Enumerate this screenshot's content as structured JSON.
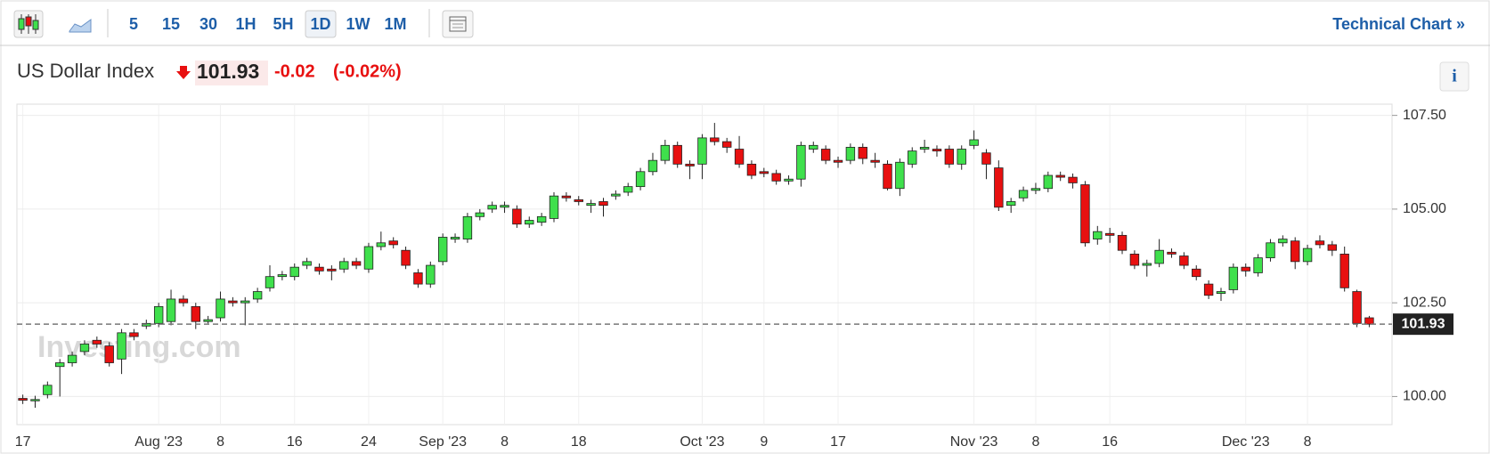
{
  "toolbar": {
    "intervals": [
      "5",
      "15",
      "30",
      "1H",
      "5H",
      "1D",
      "1W",
      "1M"
    ],
    "technical_chart": "Technical Chart »"
  },
  "header": {
    "title": "US Dollar Index",
    "price": "101.93",
    "change": "-0.02",
    "change_pct": "(-0.02%)",
    "info": "i"
  },
  "watermark": "Investing.com",
  "chart_data": {
    "type": "candlestick",
    "categories": [
      "17",
      null,
      null,
      null,
      null,
      null,
      null,
      null,
      null,
      null,
      null,
      "Aug '23",
      null,
      null,
      null,
      null,
      "8",
      null,
      null,
      null,
      null,
      null,
      "16",
      null,
      null,
      null,
      null,
      null,
      "24",
      null,
      null,
      null,
      null,
      null,
      "Sep '23",
      null,
      null,
      null,
      null,
      "8",
      null,
      null,
      null,
      null,
      null,
      "18",
      null,
      null,
      null,
      null,
      null,
      null,
      null,
      null,
      null,
      "Oct '23",
      null,
      null,
      null,
      null,
      "9",
      null,
      null,
      null,
      null,
      null,
      "17",
      null,
      null,
      null,
      null,
      null,
      null,
      null,
      null,
      null,
      null,
      "Nov '23",
      null,
      null,
      null,
      null,
      "8",
      null,
      null,
      null,
      null,
      null,
      "16",
      null,
      null,
      null,
      null,
      null,
      null,
      null,
      null,
      null,
      null,
      "Dec '23",
      null,
      null,
      null,
      null,
      "8",
      null,
      null,
      null,
      null,
      null
    ],
    "open": [
      99.95,
      99.9,
      100.05,
      100.8,
      100.9,
      101.2,
      101.5,
      101.35,
      101.0,
      101.7,
      101.88,
      101.95,
      102.0,
      102.6,
      102.4,
      102.0,
      102.1,
      102.55,
      102.5,
      102.6,
      102.9,
      103.2,
      103.2,
      103.5,
      103.45,
      103.4,
      103.4,
      103.6,
      103.4,
      104.0,
      104.15,
      103.9,
      103.3,
      103.0,
      103.6,
      104.2,
      104.2,
      104.8,
      105.0,
      105.05,
      105.0,
      104.6,
      104.65,
      104.75,
      105.35,
      105.25,
      105.1,
      105.2,
      105.35,
      105.45,
      105.6,
      106.0,
      106.3,
      106.7,
      106.2,
      106.2,
      106.9,
      106.8,
      106.6,
      106.2,
      106.0,
      105.95,
      105.75,
      105.8,
      106.6,
      106.6,
      106.3,
      106.3,
      106.65,
      106.3,
      106.2,
      105.55,
      106.2,
      106.6,
      106.6,
      106.6,
      106.2,
      106.7,
      106.5,
      106.1,
      105.1,
      105.3,
      105.5,
      105.55,
      105.9,
      105.85,
      105.65,
      104.2,
      104.35,
      104.3,
      103.8,
      103.5,
      103.55,
      103.85,
      103.75,
      103.4,
      103.0,
      102.75,
      102.85,
      103.45,
      103.3,
      103.7,
      104.1,
      104.15,
      103.6,
      104.15,
      104.05,
      103.8,
      102.8,
      102.1
    ],
    "high": [
      100.05,
      100.02,
      100.4,
      101.0,
      101.2,
      101.5,
      101.6,
      101.45,
      101.8,
      101.8,
      102.05,
      102.5,
      102.85,
      102.7,
      102.5,
      102.15,
      102.8,
      102.65,
      102.65,
      102.9,
      103.5,
      103.35,
      103.55,
      103.7,
      103.55,
      103.5,
      103.7,
      103.7,
      104.1,
      104.4,
      104.25,
      104.0,
      103.4,
      103.6,
      104.35,
      104.35,
      104.9,
      105.0,
      105.2,
      105.2,
      105.1,
      104.8,
      104.9,
      105.45,
      105.45,
      105.35,
      105.25,
      105.3,
      105.5,
      105.7,
      106.1,
      106.5,
      106.85,
      106.8,
      106.3,
      107.0,
      107.3,
      106.9,
      106.95,
      106.3,
      106.1,
      106.05,
      105.9,
      106.8,
      106.8,
      106.7,
      106.4,
      106.75,
      106.75,
      106.5,
      106.3,
      106.35,
      106.65,
      106.85,
      106.7,
      106.7,
      106.7,
      107.1,
      106.6,
      106.3,
      105.3,
      105.6,
      105.7,
      106.0,
      106.0,
      105.95,
      105.75,
      104.55,
      104.5,
      104.4,
      103.9,
      103.65,
      104.2,
      103.95,
      103.85,
      103.5,
      103.1,
      102.9,
      103.55,
      103.55,
      103.8,
      104.2,
      104.3,
      104.25,
      104.05,
      104.3,
      104.15,
      104.0,
      102.85,
      102.15
    ],
    "low": [
      99.8,
      99.7,
      99.95,
      100.0,
      100.8,
      101.1,
      101.3,
      100.8,
      100.6,
      101.5,
      101.8,
      101.85,
      101.9,
      102.4,
      101.8,
      101.95,
      102.0,
      102.4,
      101.9,
      102.5,
      102.8,
      103.1,
      103.1,
      103.4,
      103.25,
      103.1,
      103.3,
      103.4,
      103.3,
      103.9,
      103.95,
      103.4,
      102.9,
      102.9,
      103.5,
      104.1,
      104.1,
      104.7,
      104.9,
      104.9,
      104.5,
      104.5,
      104.55,
      104.65,
      105.2,
      105.1,
      104.9,
      104.8,
      105.25,
      105.35,
      105.5,
      105.9,
      106.2,
      106.1,
      105.8,
      105.8,
      106.7,
      106.5,
      106.1,
      105.8,
      105.85,
      105.65,
      105.65,
      105.6,
      106.5,
      106.2,
      106.1,
      106.2,
      106.2,
      106.1,
      105.5,
      105.35,
      106.1,
      106.5,
      106.4,
      106.1,
      106.05,
      106.6,
      105.8,
      104.95,
      104.9,
      105.2,
      105.4,
      105.45,
      105.75,
      105.55,
      104.0,
      104.05,
      104.1,
      103.8,
      103.4,
      103.2,
      103.45,
      103.7,
      103.4,
      103.1,
      102.6,
      102.55,
      102.75,
      103.2,
      103.2,
      103.6,
      104.0,
      103.4,
      103.5,
      103.95,
      103.75,
      102.8,
      101.85,
      101.85
    ],
    "close": [
      99.9,
      99.92,
      100.3,
      100.9,
      101.1,
      101.4,
      101.4,
      100.9,
      101.7,
      101.6,
      101.95,
      102.4,
      102.6,
      102.5,
      102.0,
      102.05,
      102.6,
      102.5,
      102.55,
      102.8,
      103.2,
      103.25,
      103.45,
      103.6,
      103.35,
      103.35,
      103.6,
      103.5,
      104.0,
      104.1,
      104.05,
      103.5,
      103.0,
      103.5,
      104.25,
      104.25,
      104.8,
      104.9,
      105.1,
      105.1,
      104.6,
      104.7,
      104.8,
      105.35,
      105.3,
      105.2,
      105.15,
      105.1,
      105.4,
      105.6,
      106.0,
      106.3,
      106.7,
      106.2,
      106.15,
      106.9,
      106.8,
      106.65,
      106.2,
      105.9,
      105.95,
      105.75,
      105.8,
      106.7,
      106.7,
      106.3,
      106.25,
      106.65,
      106.35,
      106.25,
      105.55,
      106.25,
      106.55,
      106.65,
      106.55,
      106.2,
      106.6,
      106.85,
      106.2,
      105.05,
      105.2,
      105.5,
      105.55,
      105.9,
      105.85,
      105.7,
      104.1,
      104.4,
      104.3,
      103.9,
      103.5,
      103.55,
      103.9,
      103.8,
      103.5,
      103.2,
      102.7,
      102.8,
      103.45,
      103.35,
      103.7,
      104.1,
      104.2,
      103.6,
      103.95,
      104.05,
      103.9,
      102.9,
      101.95,
      101.93
    ],
    "up_color": "#3fe04c",
    "down_color": "#e81010",
    "last_price": {
      "value": 101.93,
      "label": "101.93"
    },
    "ylim": [
      99.25,
      107.8
    ],
    "yticks": [
      {
        "value": 100,
        "label": "100.00"
      },
      {
        "value": 102.5,
        "label": "102.50"
      },
      {
        "value": 105,
        "label": "105.00"
      },
      {
        "value": 107.5,
        "label": "107.50"
      }
    ],
    "grid": true
  }
}
